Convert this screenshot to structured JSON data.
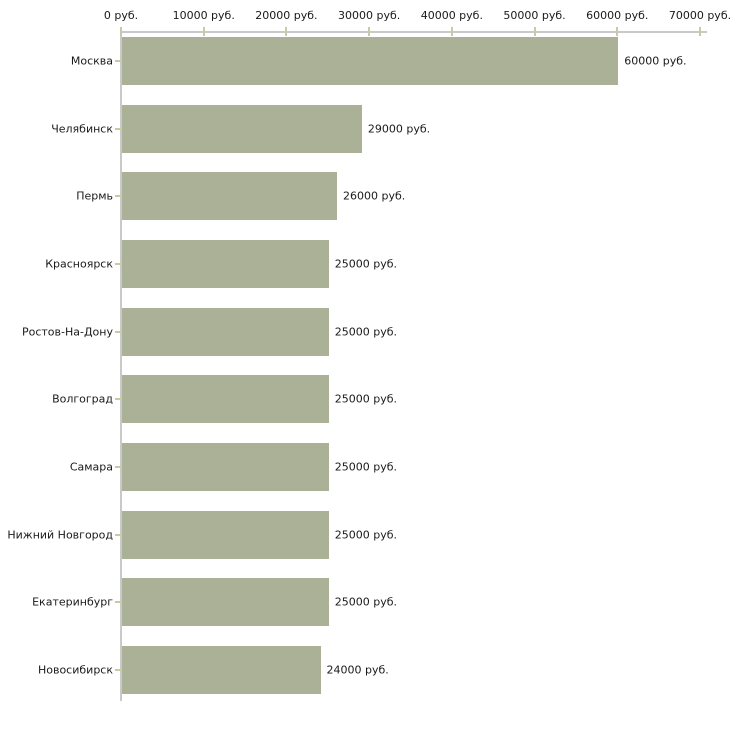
{
  "chart_data": {
    "type": "bar",
    "orientation": "horizontal",
    "title": "",
    "xlabel": "",
    "ylabel": "",
    "xlim": [
      0,
      70000
    ],
    "grid": false,
    "legend": null,
    "x_tick_values": [
      0,
      10000,
      20000,
      30000,
      40000,
      50000,
      60000,
      70000
    ],
    "x_tick_labels": [
      "0 руб.",
      "10000 руб.",
      "20000 руб.",
      "30000 руб.",
      "40000 руб.",
      "50000 руб.",
      "60000 руб.",
      "70000 руб."
    ],
    "categories": [
      "Москва",
      "Челябинск",
      "Пермь",
      "Красноярск",
      "Ростов-На-Дону",
      "Волгоград",
      "Самара",
      "Нижний Новгород",
      "Екатеринбург",
      "Новосибирск"
    ],
    "values": [
      60000,
      29000,
      26000,
      25000,
      25000,
      25000,
      25000,
      25000,
      25000,
      24000
    ],
    "value_labels": [
      "60000 руб.",
      "29000 руб.",
      "26000 руб.",
      "25000 руб.",
      "25000 руб.",
      "25000 руб.",
      "25000 руб.",
      "25000 руб.",
      "25000 руб.",
      "24000 руб."
    ],
    "colors": {
      "bar": "#aab197",
      "axis_line": "#c9c9c9",
      "tick": "#c9c9a3",
      "text": "#1a1a1a",
      "background": "#ffffff"
    }
  }
}
